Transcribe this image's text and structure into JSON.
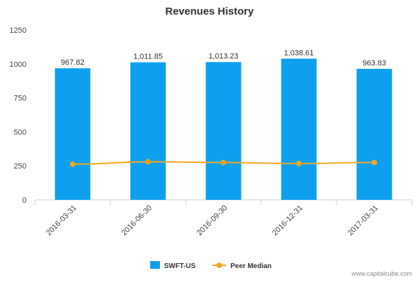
{
  "chart_data": {
    "type": "bar",
    "title": "Revenues History",
    "categories": [
      "2016-03-31",
      "2016-06-30",
      "2016-09-30",
      "2016-12-31",
      "2017-03-31"
    ],
    "series": [
      {
        "name": "SWFT-US",
        "kind": "bar",
        "color": "#0ea0ef",
        "values": [
          967.82,
          1011.85,
          1013.23,
          1038.61,
          963.83
        ],
        "data_labels": [
          "967.82",
          "1,011.85",
          "1,013.23",
          "1,038.61",
          "963.83"
        ]
      },
      {
        "name": "Peer Median",
        "kind": "line",
        "color": "#f5a623",
        "values": [
          262,
          280,
          275,
          267,
          275
        ]
      }
    ],
    "y_ticks": [
      "0",
      "250",
      "500",
      "750",
      "1000",
      "1250"
    ],
    "ylim": [
      0,
      1250
    ],
    "grid": false,
    "legend_position": "bottom"
  },
  "credit": "www.capitalcube.com"
}
